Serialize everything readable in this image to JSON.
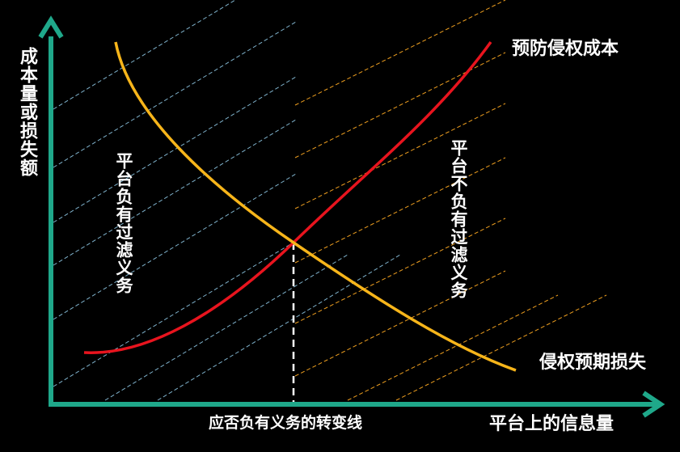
{
  "chart_data": {
    "type": "line",
    "title": "",
    "xlabel": "平台上的信息量",
    "ylabel": "成本量或损失额",
    "x_ticks": [],
    "y_ticks": [],
    "grid": false,
    "series": [
      {
        "name": "预防侵权成本",
        "color": "#e8141e",
        "trend": "increasing"
      },
      {
        "name": "侵权预期损失",
        "color": "#f7b51a",
        "trend": "decreasing"
      }
    ],
    "intersection_label": "应否负有义务的转变线",
    "regions": [
      {
        "label": "平台负有过滤义务",
        "position": "left of intersection",
        "hatch_color": "#7fb2cc"
      },
      {
        "label": "平台不负有过滤义务",
        "position": "right of intersection",
        "hatch_color": "#f0a020"
      }
    ]
  },
  "colors": {
    "background": "#000000",
    "axis": "#1fa88a",
    "text": "#ffffff"
  }
}
